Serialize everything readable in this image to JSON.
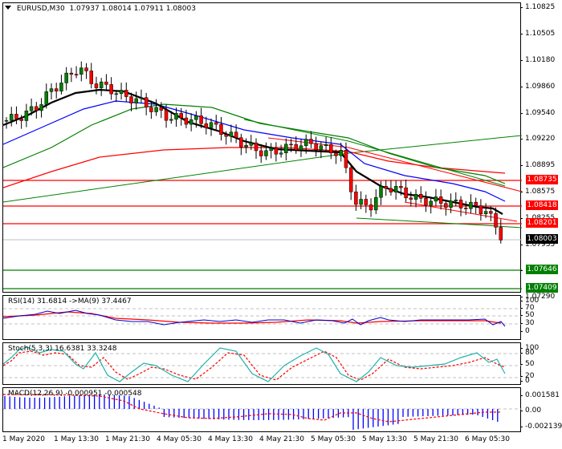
{
  "header": {
    "dropdown_icon": "triangle-down-icon",
    "symbol": "EURUSD,M30",
    "open": "1.07937",
    "high": "1.08014",
    "low": "1.07911",
    "close": "1.08003"
  },
  "price_axis": {
    "ticks": [
      "1.10825",
      "1.10505",
      "1.10180",
      "1.09860",
      "1.09540",
      "1.09220",
      "1.08895",
      "1.08575",
      "1.08255",
      "1.07935",
      "1.07615",
      "1.07290"
    ],
    "tags": [
      {
        "value": "1.08735",
        "color": "#ff0000"
      },
      {
        "value": "1.08418",
        "color": "#ff0000"
      },
      {
        "value": "1.08201",
        "color": "#ff0000"
      },
      {
        "value": "1.08003",
        "color": "#000000"
      },
      {
        "value": "1.07646",
        "color": "#008000"
      },
      {
        "value": "1.07409",
        "color": "#008000"
      }
    ]
  },
  "rsi": {
    "label": "RSI(14) 31.6814  ->MA(9) 37.4467",
    "axis": [
      "100",
      "70",
      "50",
      "30",
      "0"
    ]
  },
  "stoch": {
    "label": "Stoch(5,3,3) 16.6381 33.3248",
    "axis": [
      "100",
      "80",
      "50",
      "20",
      "0"
    ]
  },
  "macd": {
    "label": "MACD(12,26,9) -0.000951 -0.000548",
    "axis": [
      "0.001581",
      "0.00",
      "-0.002139"
    ]
  },
  "time_axis": [
    "1 May 2020",
    "1 May 13:30",
    "1 May 21:30",
    "4 May 05:30",
    "4 May 13:30",
    "4 May 21:30",
    "5 May 05:30",
    "5 May 13:30",
    "5 May 21:30",
    "6 May 05:30"
  ],
  "colors": {
    "bull": "#008000",
    "bear": "#ff0000",
    "ma_fast": "#000000",
    "ma_mid": "#0000ff",
    "ma_slow": "#008000",
    "ma_long": "#ff0000",
    "rsi": "#0000cc",
    "rsi_ma": "#ff0000",
    "stoch_main": "#20b2aa",
    "stoch_signal": "#ff0000",
    "macd_hist": "#0000ff",
    "macd_signal": "#ff0000"
  },
  "chart_data": [
    {
      "type": "candlestick",
      "title": "EURUSD,M30",
      "ylim": [
        1.0729,
        1.1083
      ],
      "x_labels": [
        "1 May 2020",
        "1 May 13:30",
        "1 May 21:30",
        "4 May 05:30",
        "4 May 13:30",
        "4 May 21:30",
        "5 May 05:30",
        "5 May 13:30",
        "5 May 21:30",
        "6 May 05:30"
      ],
      "ohlc_last": {
        "open": 1.07937,
        "high": 1.08014,
        "low": 1.07911,
        "close": 1.08003
      },
      "horizontal_levels": [
        {
          "price": 1.08735,
          "color": "red"
        },
        {
          "price": 1.08418,
          "color": "red"
        },
        {
          "price": 1.08201,
          "color": "red"
        },
        {
          "price": 1.07646,
          "color": "green"
        },
        {
          "price": 1.07409,
          "color": "green"
        }
      ],
      "close_series_approx": [
        1.094,
        1.0945,
        1.0955,
        1.0975,
        1.099,
        1.1005,
        1.0985,
        1.098,
        1.097,
        1.0965,
        1.0955,
        1.0945,
        1.0942,
        1.094,
        1.0935,
        1.0925,
        1.0915,
        1.0905,
        1.09,
        1.0905,
        1.091,
        1.0912,
        1.0905,
        1.09,
        1.084,
        1.0835,
        1.086,
        1.0855,
        1.0845,
        1.0842,
        1.084,
        1.0838,
        1.0835,
        1.083,
        1.08
      ]
    },
    {
      "type": "line",
      "title": "RSI(14)",
      "series": [
        {
          "name": "RSI",
          "last": 31.6814
        },
        {
          "name": "MA(9)",
          "last": 37.4467
        }
      ],
      "ylim": [
        0,
        100
      ],
      "levels": [
        30,
        50,
        70
      ]
    },
    {
      "type": "line",
      "title": "Stoch(5,3,3)",
      "series": [
        {
          "name": "%K",
          "last": 16.6381
        },
        {
          "name": "%D",
          "last": 33.3248
        }
      ],
      "ylim": [
        0,
        100
      ],
      "levels": [
        20,
        50,
        80
      ]
    },
    {
      "type": "bar",
      "title": "MACD(12,26,9)",
      "series": [
        {
          "name": "MACD",
          "last": -0.000951
        },
        {
          "name": "Signal",
          "last": -0.000548
        }
      ],
      "ylim": [
        -0.002139,
        0.001581
      ]
    }
  ]
}
